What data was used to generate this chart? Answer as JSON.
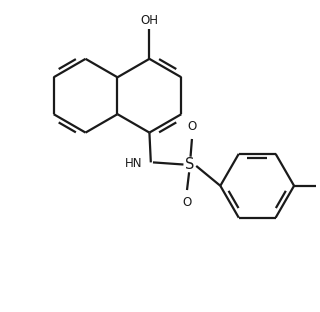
{
  "bg_color": "#ffffff",
  "line_color": "#1a1a1a",
  "line_width": 1.6,
  "font_size": 8.5,
  "fig_width": 3.2,
  "fig_height": 3.12,
  "dpi": 100,
  "xlim": [
    -1.9,
    2.5
  ],
  "ylim": [
    -1.8,
    2.6
  ]
}
